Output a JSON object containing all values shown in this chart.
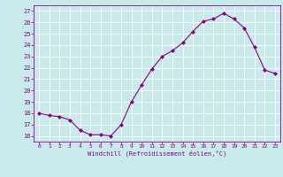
{
  "hours": [
    0,
    1,
    2,
    3,
    4,
    5,
    6,
    7,
    8,
    9,
    10,
    11,
    12,
    13,
    14,
    15,
    16,
    17,
    18,
    19,
    20,
    21,
    22,
    23
  ],
  "temps": [
    18.0,
    17.8,
    17.7,
    17.4,
    16.5,
    16.1,
    16.1,
    16.0,
    17.0,
    19.0,
    20.5,
    21.9,
    23.0,
    23.5,
    24.2,
    25.2,
    26.1,
    26.3,
    26.8,
    26.3,
    25.5,
    23.8,
    21.8,
    21.5
  ],
  "ylim": [
    15.5,
    27.5
  ],
  "yticks": [
    16,
    17,
    18,
    19,
    20,
    21,
    22,
    23,
    24,
    25,
    26,
    27
  ],
  "line_color": "#880088",
  "marker_color": "#880088",
  "bg_color": "#c8eaea",
  "grid_color": "#ffffff",
  "xlabel": "Windchill (Refroidissement éolien,°C)",
  "xlim": [
    -0.5,
    23.5
  ],
  "xticks": [
    0,
    1,
    2,
    3,
    4,
    5,
    6,
    7,
    8,
    9,
    10,
    11,
    12,
    13,
    14,
    15,
    16,
    17,
    18,
    19,
    20,
    21,
    22,
    23
  ]
}
